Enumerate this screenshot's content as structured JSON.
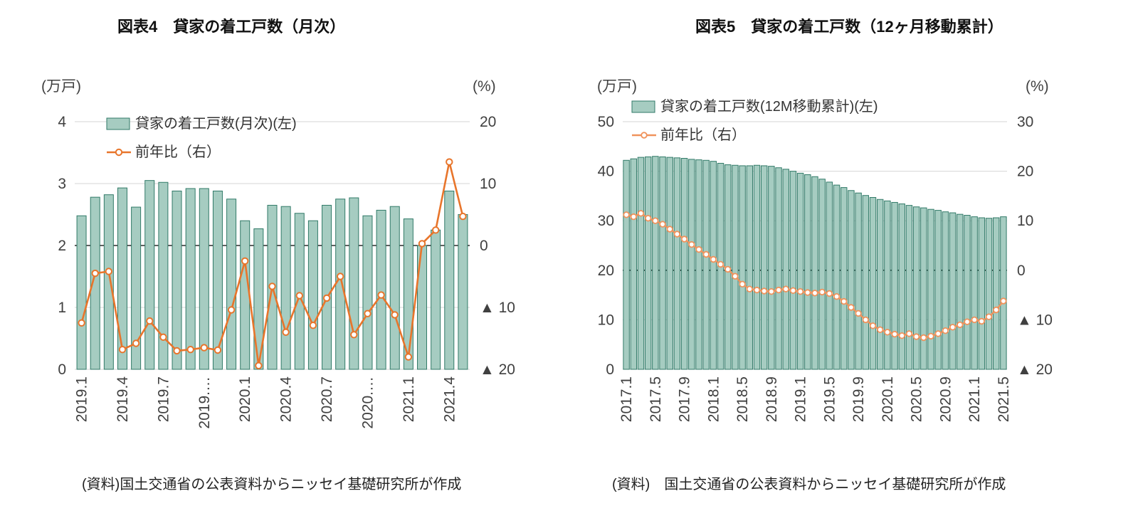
{
  "page": {
    "background": "#ffffff"
  },
  "colors": {
    "bar_fill": "#a6ccc1",
    "bar_stroke": "#317a68",
    "grid": "#d6d6d6",
    "zero_line": "#000000",
    "tick_text": "#404040",
    "title_text": "#111111"
  },
  "chart_data": [
    {
      "type": "bar+line",
      "title": "図表4　貸家の着工戸数（月次）",
      "source": "(資料)国土交通省の公表資料からニッセイ基礎研究所が作成",
      "line_color": "#e8752b",
      "left_axis": {
        "unit": "(万戸)",
        "min": 0,
        "max": 4,
        "ticks": [
          {
            "v": 4,
            "t": "4"
          },
          {
            "v": 3,
            "t": "3"
          },
          {
            "v": 2,
            "t": "2"
          },
          {
            "v": 1,
            "t": "1"
          },
          {
            "v": 0,
            "t": "0"
          }
        ]
      },
      "right_axis": {
        "unit": "(%)",
        "min": -20,
        "max": 20,
        "ticks": [
          {
            "v": 20,
            "t": "20"
          },
          {
            "v": 10,
            "t": "10"
          },
          {
            "v": 0,
            "t": "0"
          },
          {
            "v": -10,
            "t": "▲ 10"
          },
          {
            "v": -20,
            "t": "▲ 20"
          }
        ]
      },
      "categories": [
        "2019.1",
        "2019.2",
        "2019.3",
        "2019.4",
        "2019.5",
        "2019.6",
        "2019.7",
        "2019.8",
        "2019.9",
        "2019.10",
        "2019.11",
        "2019.12",
        "2020.1",
        "2020.2",
        "2020.3",
        "2020.4",
        "2020.5",
        "2020.6",
        "2020.7",
        "2020.8",
        "2020.9",
        "2020.10",
        "2020.11",
        "2020.12",
        "2021.1",
        "2021.2",
        "2021.3",
        "2021.4",
        "2021.5"
      ],
      "series": [
        {
          "name": "貸家の着工戸数(月次)(左)",
          "type": "bar",
          "axis": "left",
          "values": [
            2.48,
            2.78,
            2.82,
            2.93,
            2.62,
            3.05,
            3.02,
            2.88,
            2.92,
            2.92,
            2.88,
            2.75,
            2.4,
            2.27,
            2.65,
            2.63,
            2.52,
            2.4,
            2.65,
            2.75,
            2.77,
            2.48,
            2.57,
            2.63,
            2.43,
            2.0,
            2.25,
            2.88,
            2.5
          ]
        },
        {
          "name": "前年比（右）",
          "type": "line",
          "axis": "right",
          "values": [
            -12.5,
            -4.5,
            -4.2,
            -16.8,
            -15.8,
            -12.2,
            -14.8,
            -17.0,
            -16.8,
            -16.5,
            -16.9,
            -10.4,
            -2.5,
            -19.4,
            -6.6,
            -14.0,
            -8.1,
            -12.9,
            -8.5,
            -5.0,
            -14.4,
            -11.0,
            -8.0,
            -11.2,
            -18.0,
            0.3,
            2.5,
            13.5,
            4.7
          ]
        }
      ],
      "x_ticks": [
        {
          "i": 0,
          "t": "2019.1"
        },
        {
          "i": 3,
          "t": "2019.4"
        },
        {
          "i": 6,
          "t": "2019.7"
        },
        {
          "i": 9,
          "t": "2019.…"
        },
        {
          "i": 12,
          "t": "2020.1"
        },
        {
          "i": 15,
          "t": "2020.4"
        },
        {
          "i": 18,
          "t": "2020.7"
        },
        {
          "i": 21,
          "t": "2020.…"
        },
        {
          "i": 24,
          "t": "2021.1"
        },
        {
          "i": 27,
          "t": "2021.4"
        }
      ]
    },
    {
      "type": "bar+line",
      "title": "図表5　貸家の着工戸数（12ヶ月移動累計）",
      "source": "(資料)　国土交通省の公表資料からニッセイ基礎研究所が作成",
      "line_color": "#f0935c",
      "left_axis": {
        "unit": "(万戸)",
        "min": 0,
        "max": 50,
        "ticks": [
          {
            "v": 50,
            "t": "50"
          },
          {
            "v": 40,
            "t": "40"
          },
          {
            "v": 30,
            "t": "30"
          },
          {
            "v": 20,
            "t": "20"
          },
          {
            "v": 10,
            "t": "10"
          },
          {
            "v": 0,
            "t": "0"
          }
        ]
      },
      "right_axis": {
        "unit": "(%)",
        "min": -20,
        "max": 30,
        "ticks": [
          {
            "v": 30,
            "t": "30"
          },
          {
            "v": 20,
            "t": "20"
          },
          {
            "v": 10,
            "t": "10"
          },
          {
            "v": 0,
            "t": "0"
          },
          {
            "v": -10,
            "t": "▲ 10"
          },
          {
            "v": -20,
            "t": "▲ 20"
          }
        ]
      },
      "categories": [
        "2017.1",
        "2017.2",
        "2017.3",
        "2017.4",
        "2017.5",
        "2017.6",
        "2017.7",
        "2017.8",
        "2017.9",
        "2017.10",
        "2017.11",
        "2017.12",
        "2018.1",
        "2018.2",
        "2018.3",
        "2018.4",
        "2018.5",
        "2018.6",
        "2018.7",
        "2018.8",
        "2018.9",
        "2018.10",
        "2018.11",
        "2018.12",
        "2019.1",
        "2019.2",
        "2019.3",
        "2019.4",
        "2019.5",
        "2019.6",
        "2019.7",
        "2019.8",
        "2019.9",
        "2019.10",
        "2019.11",
        "2019.12",
        "2020.1",
        "2020.2",
        "2020.3",
        "2020.4",
        "2020.5",
        "2020.6",
        "2020.7",
        "2020.8",
        "2020.9",
        "2020.10",
        "2020.11",
        "2020.12",
        "2021.1",
        "2021.2",
        "2021.3",
        "2021.4",
        "2021.5"
      ],
      "series": [
        {
          "name": "貸家の着工戸数(12M移動累計)(左)",
          "type": "bar",
          "axis": "left",
          "values": [
            42.2,
            42.5,
            42.8,
            42.9,
            43.0,
            42.9,
            42.8,
            42.7,
            42.6,
            42.4,
            42.3,
            42.2,
            42.0,
            41.6,
            41.3,
            41.2,
            41.1,
            41.1,
            41.2,
            41.1,
            41.0,
            40.7,
            40.4,
            40.0,
            39.6,
            39.3,
            38.9,
            38.4,
            37.8,
            37.2,
            36.7,
            36.1,
            35.6,
            35.1,
            34.7,
            34.3,
            34.0,
            33.7,
            33.4,
            33.1,
            32.8,
            32.6,
            32.3,
            32.1,
            31.8,
            31.6,
            31.3,
            31.1,
            30.8,
            30.6,
            30.5,
            30.6,
            30.8
          ]
        },
        {
          "name": "前年比（右）",
          "type": "line",
          "axis": "right",
          "values": [
            11.2,
            10.8,
            11.5,
            10.5,
            10.0,
            9.3,
            8.3,
            7.3,
            6.3,
            5.2,
            4.2,
            3.2,
            2.2,
            1.2,
            0.2,
            -1.2,
            -2.8,
            -3.8,
            -4.0,
            -4.2,
            -4.3,
            -4.0,
            -3.8,
            -4.1,
            -4.3,
            -4.5,
            -4.6,
            -4.4,
            -4.7,
            -5.3,
            -6.3,
            -7.5,
            -8.7,
            -10.0,
            -11.2,
            -12.0,
            -12.5,
            -12.9,
            -13.2,
            -12.8,
            -13.4,
            -13.6,
            -13.3,
            -12.8,
            -12.2,
            -11.5,
            -11.0,
            -10.4,
            -10.0,
            -10.3,
            -9.4,
            -8.0,
            -6.2
          ]
        }
      ],
      "x_ticks": [
        {
          "i": 0,
          "t": "2017.1"
        },
        {
          "i": 4,
          "t": "2017.5"
        },
        {
          "i": 8,
          "t": "2017.9"
        },
        {
          "i": 12,
          "t": "2018.1"
        },
        {
          "i": 16,
          "t": "2018.5"
        },
        {
          "i": 20,
          "t": "2018.9"
        },
        {
          "i": 24,
          "t": "2019.1"
        },
        {
          "i": 28,
          "t": "2019.5"
        },
        {
          "i": 32,
          "t": "2019.9"
        },
        {
          "i": 36,
          "t": "2020.1"
        },
        {
          "i": 40,
          "t": "2020.5"
        },
        {
          "i": 44,
          "t": "2020.9"
        },
        {
          "i": 48,
          "t": "2021.1"
        },
        {
          "i": 52,
          "t": "2021.5"
        }
      ]
    }
  ]
}
